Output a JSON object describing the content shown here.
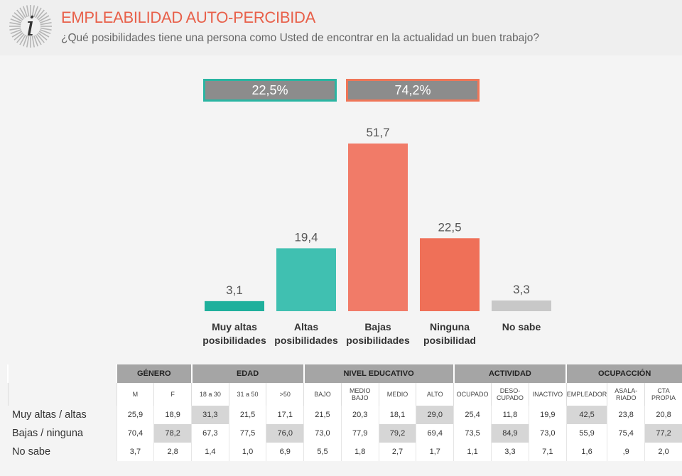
{
  "header": {
    "title": "EMPLEABILIDAD AUTO-PERCIBIDA",
    "subtitle": "¿Qué posibilidades tiene una persona como Usted de encontrar en la actualidad un buen trabajo?"
  },
  "summary": {
    "positive": "22,5%",
    "negative": "74,2%"
  },
  "colors": {
    "teal": "#2ab5a2",
    "teal_light": "#40c0b1",
    "salmon": "#f17b68",
    "salmon_dark": "#ef7058",
    "grey": "#c8c8c8",
    "title": "#e8604a"
  },
  "chart_data": {
    "type": "bar",
    "categories": [
      [
        "Muy altas",
        "posibilidades"
      ],
      [
        "Altas",
        "posibilidades"
      ],
      [
        "Bajas",
        "posibilidades"
      ],
      [
        "Ninguna",
        "posibilidad"
      ],
      [
        "No sabe"
      ]
    ],
    "values": [
      3.1,
      19.4,
      51.7,
      22.5,
      3.3
    ],
    "value_labels": [
      "3,1",
      "19,4",
      "51,7",
      "22,5",
      "3,3"
    ],
    "bar_colors": [
      "#1fb09c",
      "#40c0b1",
      "#f17b68",
      "#ef7058",
      "#c8c8c8"
    ]
  },
  "table": {
    "groups": [
      {
        "label": "GÉNERO",
        "span": 2
      },
      {
        "label": "EDAD",
        "span": 3
      },
      {
        "label": "NIVEL EDUCATIVO",
        "span": 4
      },
      {
        "label": "ACTIVIDAD",
        "span": 3
      },
      {
        "label": "OCUPACCIÓN",
        "span": 3
      }
    ],
    "columns": [
      "M",
      "F",
      "18 a 30",
      "31 a 50",
      ">50",
      "BAJO",
      "MEDIO\nBAJO",
      "MEDIO",
      "ALTO",
      "OCUPADO",
      "DESO-\nCUPADO",
      "INACTIVO",
      "EMPLEADOR",
      "ASALA-\nRIADO",
      "CTA\nPROPIA"
    ],
    "rows": [
      {
        "label": "Muy altas / altas",
        "values": [
          "25,9",
          "18,9",
          "31,3",
          "21,5",
          "17,1",
          "21,5",
          "20,3",
          "18,1",
          "29,0",
          "25,4",
          "11,8",
          "19,9",
          "42,5",
          "23,8",
          "20,8"
        ],
        "highlight": [
          2,
          8,
          12
        ]
      },
      {
        "label": "Bajas / ninguna",
        "values": [
          "70,4",
          "78,2",
          "67,3",
          "77,5",
          "76,0",
          "73,0",
          "77,9",
          "79,2",
          "69,4",
          "73,5",
          "84,9",
          "73,0",
          "55,9",
          "75,4",
          "77,2"
        ],
        "highlight": [
          1,
          4,
          7,
          10,
          14
        ]
      },
      {
        "label": "No sabe",
        "values": [
          "3,7",
          "2,8",
          "1,4",
          "1,0",
          "6,9",
          "5,5",
          "1,8",
          "2,7",
          "1,7",
          "1,1",
          "3,3",
          "7,1",
          "1,6",
          ",9",
          "2,0"
        ],
        "highlight": []
      }
    ]
  }
}
